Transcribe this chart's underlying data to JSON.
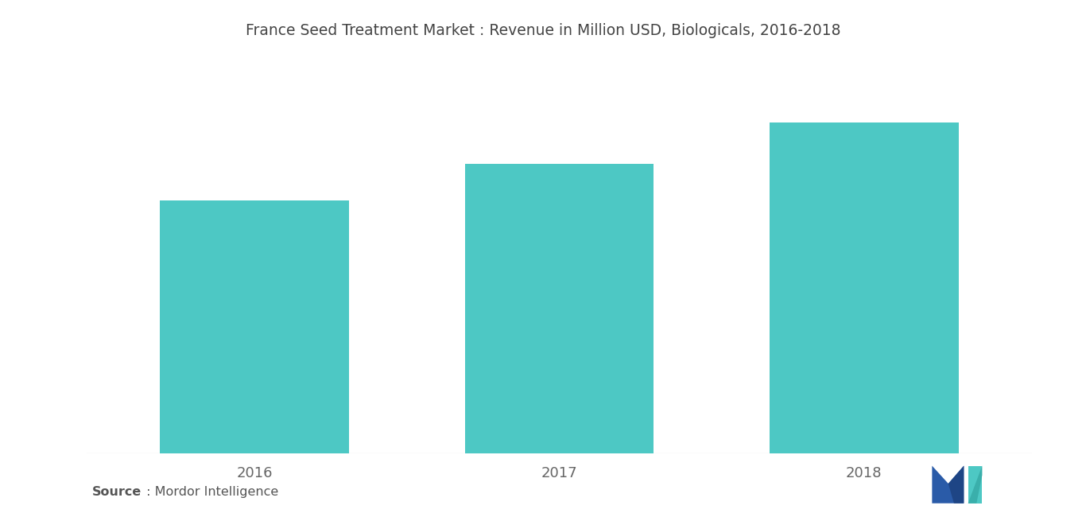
{
  "title": "France Seed Treatment Market : Revenue in Million USD, Biologicals, 2016-2018",
  "categories": [
    "2016",
    "2017",
    "2018"
  ],
  "values": [
    5.5,
    6.3,
    7.2
  ],
  "bar_color": "#4DC8C4",
  "background_color": "#ffffff",
  "source_bold": "Source",
  "source_rest": " : Mordor Intelligence",
  "title_fontsize": 13.5,
  "source_fontsize": 11.5,
  "ylim": [
    0,
    8.5
  ],
  "bar_width": 0.62
}
